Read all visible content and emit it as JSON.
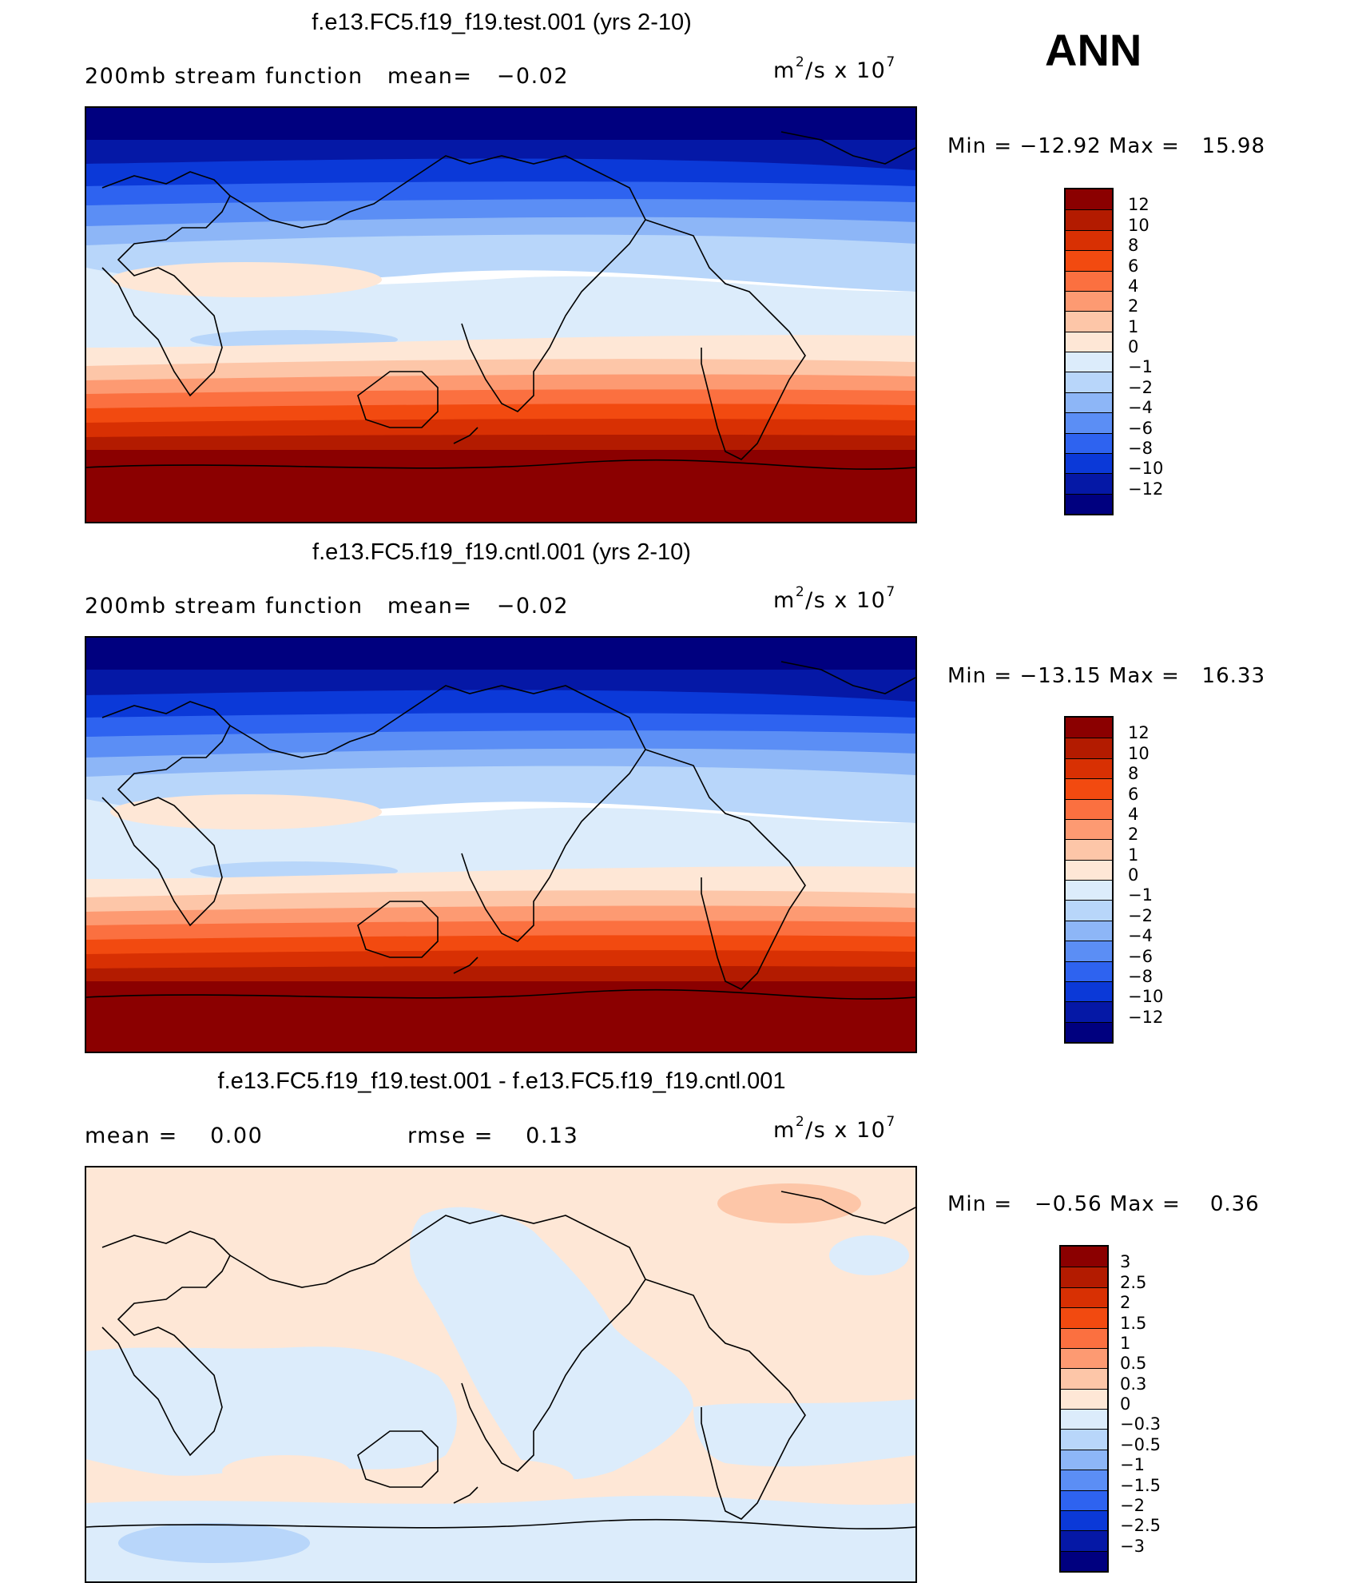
{
  "season": "ANN",
  "panels": [
    {
      "title": "f.e13.FC5.f19_f19.test.001 (yrs 2-10)",
      "field": "200mb stream function",
      "mean_label": "mean=",
      "mean": "−0.02",
      "units": "m",
      "units_exp": "2",
      "units_rest": "/s x 10",
      "units_pow": "7",
      "min_label": "Min =",
      "min": "−12.92",
      "max_label": "Max =",
      "max": "15.98"
    },
    {
      "title": "f.e13.FC5.f19_f19.cntl.001 (yrs 2-10)",
      "field": "200mb stream function",
      "mean_label": "mean=",
      "mean": "−0.02",
      "units": "m",
      "units_exp": "2",
      "units_rest": "/s x 10",
      "units_pow": "7",
      "min_label": "Min =",
      "min": "−13.15",
      "max_label": "Max =",
      "max": "16.33"
    },
    {
      "title": "f.e13.FC5.f19_f19.test.001 - f.e13.FC5.f19_f19.cntl.001",
      "mean_label": "mean =",
      "mean": "0.00",
      "rmse_label": "rmse =",
      "rmse": "0.13",
      "units": "m",
      "units_exp": "2",
      "units_rest": "/s x 10",
      "units_pow": "7",
      "min_label": "Min =",
      "min": "−0.56",
      "max_label": "Max =",
      "max": "0.36"
    }
  ],
  "colorbars": {
    "field": {
      "labels": [
        "12",
        "10",
        "8",
        "6",
        "4",
        "2",
        "1",
        "0",
        "−1",
        "−2",
        "−4",
        "−6",
        "−8",
        "−10",
        "−12"
      ],
      "colors": [
        "#8b0000",
        "#b31b00",
        "#d83003",
        "#f24a10",
        "#fb7040",
        "#fd9a72",
        "#fdc6a8",
        "#fee7d6",
        "#dcecfb",
        "#b8d6fa",
        "#8db6f7",
        "#5b8ef5",
        "#2e63f0",
        "#0b39d8",
        "#0518a6",
        "#00007f"
      ]
    },
    "diff": {
      "labels": [
        "3",
        "2.5",
        "2",
        "1.5",
        "1",
        "0.5",
        "0.3",
        "0",
        "−0.3",
        "−0.5",
        "−1",
        "−1.5",
        "−2",
        "−2.5",
        "−3"
      ],
      "colors": [
        "#8b0000",
        "#b31b00",
        "#d83003",
        "#f24a10",
        "#fb7040",
        "#fd9a72",
        "#fdc6a8",
        "#fee7d6",
        "#dcecfb",
        "#b8d6fa",
        "#8db6f7",
        "#5b8ef5",
        "#2e63f0",
        "#0b39d8",
        "#0518a6",
        "#00007f"
      ]
    }
  }
}
